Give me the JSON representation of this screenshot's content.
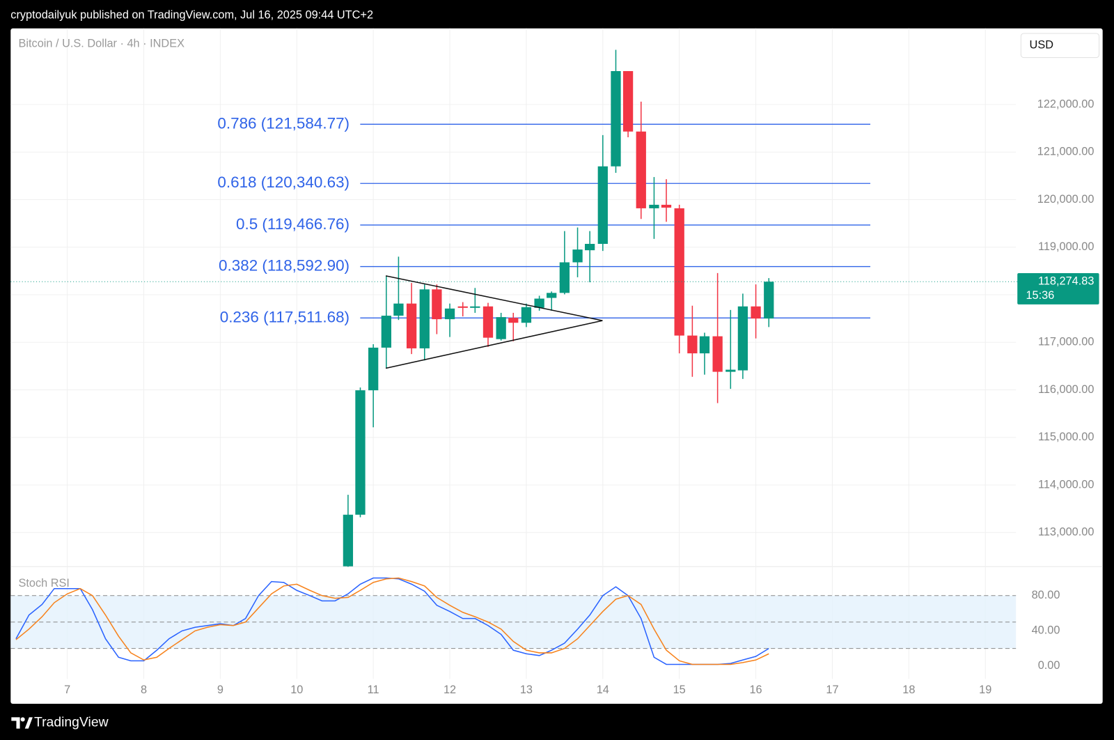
{
  "page": {
    "header": "cryptodailyuk published on TradingView.com, Jul 16, 2025 09:44 UTC+2",
    "brand": "TradingView"
  },
  "chart_data": [
    {
      "type": "candlestick",
      "title": "Bitcoin / U.S. Dollar · 4h · INDEX",
      "currency": "USD",
      "x": [
        10.67,
        10.83,
        11,
        11.17,
        11.33,
        11.5,
        11.67,
        11.83,
        12,
        12.17,
        12.33,
        12.5,
        12.67,
        12.83,
        13,
        13.17,
        13.33,
        13.5,
        13.67,
        13.83,
        14,
        14.17,
        14.33,
        14.5,
        14.67,
        14.83,
        15,
        15.17,
        15.33,
        15.5,
        15.67,
        15.83,
        16,
        16.17
      ],
      "open": [
        112290,
        113375,
        115991,
        116888,
        117560,
        117815,
        116873,
        118113,
        117486,
        117755,
        117725,
        117755,
        117067,
        117515,
        117411,
        117725,
        117934,
        118039,
        118682,
        118936,
        119070,
        120700,
        122703,
        121432,
        119818,
        119892,
        119818,
        117142,
        116768,
        117127,
        116380,
        116410,
        117755,
        117500
      ],
      "high": [
        113794,
        116050,
        116960,
        118398,
        118801,
        118248,
        118218,
        118218,
        117815,
        117845,
        118143,
        117830,
        117620,
        117620,
        117815,
        117979,
        118069,
        119339,
        119414,
        119339,
        121357,
        123151,
        122703,
        122060,
        120475,
        120430,
        119892,
        117770,
        117202,
        118457,
        117680,
        118024,
        118218,
        118350
      ],
      "low": [
        112280,
        113320,
        115213,
        116454,
        117470,
        116753,
        116619,
        117172,
        117112,
        117545,
        117620,
        116903,
        117037,
        117022,
        117321,
        117665,
        117665,
        118009,
        118368,
        118263,
        118921,
        120565,
        121312,
        119593,
        119175,
        119534,
        116768,
        116275,
        116320,
        115722,
        116021,
        116230,
        117082,
        117321
      ],
      "close": [
        113375,
        115991,
        116888,
        117560,
        117815,
        116873,
        118113,
        117486,
        117710,
        117725,
        117755,
        117097,
        117530,
        117411,
        117740,
        117919,
        118039,
        118682,
        118951,
        119070,
        120700,
        122703,
        121432,
        119818,
        119892,
        119832,
        117142,
        116768,
        117127,
        116380,
        116424,
        117755,
        117500,
        118274.83
      ],
      "up_color": "#089981",
      "down_color": "#f23645",
      "xlim": [
        6.26,
        19.4
      ],
      "ylim": [
        112285,
        123600
      ],
      "yticks": [
        {
          "value": 113000,
          "label": "113,000.00"
        },
        {
          "value": 114000,
          "label": "114,000.00"
        },
        {
          "value": 115000,
          "label": "115,000.00"
        },
        {
          "value": 116000,
          "label": "116,000.00"
        },
        {
          "value": 117000,
          "label": "117,000.00"
        },
        {
          "value": 118000,
          "label": "118,000.00"
        },
        {
          "value": 119000,
          "label": "119,000.00"
        },
        {
          "value": 120000,
          "label": "120,000.00"
        },
        {
          "value": 121000,
          "label": "121,000.00"
        },
        {
          "value": 122000,
          "label": "122,000.00"
        }
      ],
      "grid": true,
      "fib_color": "#2f63e8",
      "fib_levels": [
        {
          "value": 121584.77,
          "label": "0.786 (121,584.77)"
        },
        {
          "value": 120340.63,
          "label": "0.618 (120,340.63)"
        },
        {
          "value": 119466.76,
          "label": "0.5 (119,466.76)"
        },
        {
          "value": 118592.9,
          "label": "0.382 (118,592.90)"
        },
        {
          "value": 117511.68,
          "label": "0.236 (117,511.68)"
        }
      ],
      "last_price": {
        "value": 118274.83,
        "label": "118,274.83"
      },
      "countdown": "15:36"
    },
    {
      "type": "stoch",
      "title": "Stoch RSI",
      "x": [
        6.33,
        6.5,
        6.67,
        6.83,
        7,
        7.17,
        7.33,
        7.5,
        7.67,
        7.83,
        8,
        8.17,
        8.33,
        8.5,
        8.67,
        8.83,
        9,
        9.17,
        9.33,
        9.5,
        9.67,
        9.83,
        10,
        10.17,
        10.33,
        10.5,
        10.67,
        10.83,
        11,
        11.17,
        11.33,
        11.5,
        11.67,
        11.83,
        12,
        12.17,
        12.33,
        12.5,
        12.67,
        12.83,
        13,
        13.17,
        13.33,
        13.5,
        13.67,
        13.83,
        14,
        14.17,
        14.33,
        14.5,
        14.67,
        14.83,
        15,
        15.17,
        15.33,
        15.5,
        15.67,
        15.83,
        16,
        16.17
      ],
      "series": [
        {
          "color": "#2962ff",
          "values": [
            31,
            58,
            70,
            88,
            88,
            88,
            64,
            31,
            10,
            6,
            6,
            18,
            31,
            40,
            44,
            46,
            48,
            46,
            54,
            80,
            96,
            95,
            86,
            80,
            74,
            74,
            82,
            93,
            100,
            100,
            99,
            93,
            85,
            69,
            62,
            54,
            54,
            46,
            36,
            18,
            14,
            12,
            18,
            26,
            42,
            58,
            80,
            90,
            80,
            54,
            10,
            2,
            2,
            2,
            2,
            2,
            3,
            7,
            11,
            20
          ]
        },
        {
          "color": "#f7821b",
          "values": [
            30,
            42,
            56,
            72,
            82,
            88,
            80,
            58,
            34,
            15,
            7,
            10,
            20,
            30,
            40,
            44,
            47,
            46,
            50,
            66,
            82,
            91,
            93,
            86,
            80,
            77,
            78,
            86,
            95,
            99,
            100,
            96,
            91,
            78,
            69,
            61,
            56,
            50,
            42,
            28,
            18,
            15,
            15,
            20,
            31,
            46,
            62,
            76,
            80,
            70,
            42,
            18,
            6,
            2,
            2,
            2,
            2,
            4,
            7,
            14
          ]
        }
      ],
      "bands": [
        20,
        50,
        80
      ],
      "xlim": [
        6.26,
        19.4
      ],
      "ylim": [
        -14.5,
        113
      ],
      "yticks": [
        {
          "value": 0,
          "label": "0.00"
        },
        {
          "value": 40,
          "label": "40.00"
        },
        {
          "value": 80,
          "label": "80.00"
        }
      ],
      "xticks": [
        7,
        8,
        9,
        10,
        11,
        12,
        13,
        14,
        15,
        16,
        17,
        18,
        19
      ]
    }
  ]
}
